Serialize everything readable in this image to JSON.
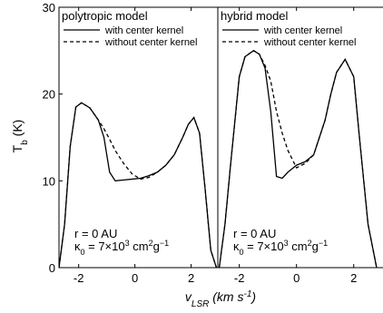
{
  "chart_data": [
    {
      "type": "line",
      "title": "polytropic model",
      "ylabel": [
        "T",
        "b",
        " (K)"
      ],
      "xlabel": [
        "v",
        "LSR",
        " (km s",
        "-1",
        ")"
      ],
      "annotation": [
        "r = 0 AU",
        "κ",
        "0",
        " = 7×10",
        "3",
        " cm",
        "2",
        "g",
        "−1"
      ],
      "x": [
        -2.7,
        -2.5,
        -2.3,
        -2.1,
        -1.9,
        -1.6,
        -1.3,
        -1.1,
        -0.9,
        -0.7,
        -0.4,
        -0.1,
        0.2,
        0.5,
        0.8,
        1.1,
        1.4,
        1.7,
        1.9,
        2.1,
        2.3,
        2.5,
        2.7,
        2.9
      ],
      "series": [
        {
          "name": "with center kernel",
          "color": "#000000",
          "style": "solid",
          "values": [
            0,
            5,
            14,
            18.5,
            19,
            18.4,
            17,
            15,
            11,
            10,
            10.1,
            10.2,
            10.3,
            10.6,
            11,
            11.8,
            13,
            15,
            16.5,
            17.3,
            15.5,
            9,
            2,
            0
          ]
        },
        {
          "name": "without center kernel",
          "color": "#000000",
          "style": "dashed",
          "values": [
            0,
            5,
            14,
            18.5,
            19,
            18.4,
            17,
            16,
            14.8,
            13.5,
            12,
            10.8,
            10.2,
            10.4,
            11,
            11.8,
            13,
            15,
            16.5,
            17.3,
            15.5,
            9,
            2,
            0
          ]
        }
      ],
      "xlim": [
        -2.7,
        2.95
      ],
      "xticks": [
        -2,
        0,
        2
      ],
      "ylim": [
        0,
        30
      ],
      "yticks": [
        0,
        10,
        20,
        30
      ],
      "grid": false
    },
    {
      "type": "line",
      "title": "hybrid model",
      "annotation": [
        "r = 0 AU",
        "κ",
        "0",
        " = 7×10",
        "3",
        " cm",
        "2",
        "g",
        "−1"
      ],
      "x": [
        -2.7,
        -2.5,
        -2.3,
        -2.0,
        -1.8,
        -1.5,
        -1.3,
        -1.1,
        -0.9,
        -0.7,
        -0.5,
        -0.3,
        0,
        0.3,
        0.6,
        0.8,
        1.0,
        1.2,
        1.4,
        1.7,
        2.0,
        2.2,
        2.5,
        2.8
      ],
      "series": [
        {
          "name": "with center kernel",
          "color": "#000000",
          "style": "solid",
          "values": [
            0,
            5,
            12,
            22,
            24.3,
            25,
            24.6,
            23,
            18,
            10.5,
            10.3,
            11,
            11.8,
            12.2,
            13,
            15,
            17,
            20,
            22.5,
            24,
            22,
            15,
            5,
            0
          ]
        },
        {
          "name": "without center kernel",
          "color": "#000000",
          "style": "dashed",
          "values": [
            0,
            5,
            12,
            22,
            24.3,
            25,
            24.6,
            23.3,
            21.5,
            18,
            15.5,
            13.5,
            11.5,
            12,
            13,
            15,
            17,
            20,
            22.5,
            24,
            22,
            15,
            5,
            0
          ]
        }
      ],
      "xlim": [
        -2.75,
        3.15
      ],
      "xticks": [
        -2,
        0,
        2
      ],
      "ylim": [
        0,
        30
      ],
      "grid": false
    }
  ]
}
